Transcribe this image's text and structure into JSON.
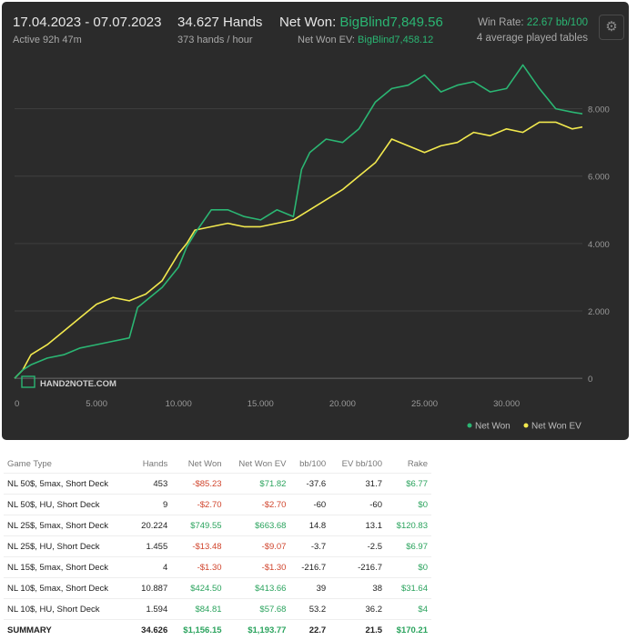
{
  "header": {
    "date_range": "17.04.2023 - 07.07.2023",
    "active": "Active 92h 47m",
    "hands": "34.627 Hands",
    "hands_per_hour": "373 hands / hour",
    "net_won_label": "Net Won:",
    "net_won_value": "BigBlind7,849.56",
    "net_won_ev_label": "Net Won  EV:",
    "net_won_ev_value": "BigBlind7,458.12",
    "win_rate_label": "Win Rate:",
    "win_rate_value": "22.67 bb/100",
    "tables": "4 average played tables",
    "gear_icon": "gear-icon"
  },
  "watermark": "HAND2NOTE.COM",
  "chart_data": {
    "type": "line",
    "xlabel": "",
    "ylabel": "",
    "xlim": [
      0,
      34627
    ],
    "ylim": [
      -400,
      9500
    ],
    "x_ticks": [
      "0",
      "5.000",
      "10.000",
      "15.000",
      "20.000",
      "25.000",
      "30.000"
    ],
    "x_tick_values": [
      0,
      5000,
      10000,
      15000,
      20000,
      25000,
      30000
    ],
    "y_ticks": [
      "0",
      "2.000",
      "4.000",
      "6.000",
      "8.000"
    ],
    "y_tick_values": [
      0,
      2000,
      4000,
      6000,
      8000
    ],
    "legend_position": "bottom-right",
    "grid": true,
    "series": [
      {
        "name": "Net Won",
        "color": "#2bb673",
        "x": [
          0,
          500,
          1000,
          2000,
          3000,
          4000,
          5000,
          6000,
          7000,
          7500,
          8000,
          9000,
          10000,
          10500,
          11000,
          12000,
          13000,
          14000,
          15000,
          16000,
          17000,
          17500,
          18000,
          18500,
          19000,
          20000,
          21000,
          22000,
          23000,
          24000,
          25000,
          26000,
          27000,
          28000,
          29000,
          30000,
          31000,
          32000,
          33000,
          34000,
          34627
        ],
        "y": [
          0,
          250,
          400,
          600,
          700,
          900,
          1000,
          1100,
          1200,
          2100,
          2300,
          2700,
          3300,
          3900,
          4300,
          5000,
          5000,
          4800,
          4700,
          5000,
          4800,
          6200,
          6700,
          6900,
          7100,
          7000,
          7400,
          8200,
          8600,
          8700,
          9000,
          8500,
          8700,
          8800,
          8500,
          8600,
          9300,
          8600,
          8000,
          7900,
          7849
        ]
      },
      {
        "name": "Net Won  EV",
        "color": "#f2e94e",
        "x": [
          0,
          500,
          1000,
          2000,
          3000,
          4000,
          5000,
          6000,
          7000,
          8000,
          9000,
          10000,
          10500,
          11000,
          12000,
          13000,
          14000,
          15000,
          16000,
          17000,
          18000,
          19000,
          20000,
          21000,
          22000,
          23000,
          24000,
          25000,
          26000,
          27000,
          28000,
          29000,
          30000,
          31000,
          32000,
          33000,
          34000,
          34627
        ],
        "y": [
          0,
          250,
          700,
          1000,
          1400,
          1800,
          2200,
          2400,
          2300,
          2500,
          2900,
          3700,
          4000,
          4400,
          4500,
          4600,
          4500,
          4500,
          4600,
          4700,
          5000,
          5300,
          5600,
          6000,
          6400,
          7100,
          6900,
          6700,
          6900,
          7000,
          7300,
          7200,
          7400,
          7300,
          7600,
          7600,
          7400,
          7458
        ]
      }
    ]
  },
  "table": {
    "headers": [
      "Game Type",
      "Hands",
      "Net Won",
      "Net Won  EV",
      "bb/100",
      "EV bb/100",
      "Rake"
    ],
    "rows": [
      {
        "game": "NL 50$, 5max, Short Deck",
        "hands": "453",
        "net_won": "-$85.23",
        "net_won_ev": "$71.82",
        "bb100": "-37.6",
        "ev_bb100": "31.7",
        "rake": "$6.77"
      },
      {
        "game": "NL 50$, HU, Short Deck",
        "hands": "9",
        "net_won": "-$2.70",
        "net_won_ev": "-$2.70",
        "bb100": "-60",
        "ev_bb100": "-60",
        "rake": "$0"
      },
      {
        "game": "NL 25$, 5max, Short Deck",
        "hands": "20.224",
        "net_won": "$749.55",
        "net_won_ev": "$663.68",
        "bb100": "14.8",
        "ev_bb100": "13.1",
        "rake": "$120.83"
      },
      {
        "game": "NL 25$, HU, Short Deck",
        "hands": "1.455",
        "net_won": "-$13.48",
        "net_won_ev": "-$9.07",
        "bb100": "-3.7",
        "ev_bb100": "-2.5",
        "rake": "$6.97"
      },
      {
        "game": "NL 15$, 5max, Short Deck",
        "hands": "4",
        "net_won": "-$1.30",
        "net_won_ev": "-$1.30",
        "bb100": "-216.7",
        "ev_bb100": "-216.7",
        "rake": "$0"
      },
      {
        "game": "NL 10$, 5max, Short Deck",
        "hands": "10.887",
        "net_won": "$424.50",
        "net_won_ev": "$413.66",
        "bb100": "39",
        "ev_bb100": "38",
        "rake": "$31.64"
      },
      {
        "game": "NL 10$, HU, Short Deck",
        "hands": "1.594",
        "net_won": "$84.81",
        "net_won_ev": "$57.68",
        "bb100": "53.2",
        "ev_bb100": "36.2",
        "rake": "$4"
      }
    ],
    "summary": {
      "game": "SUMMARY",
      "hands": "34.626",
      "net_won": "$1,156.15",
      "net_won_ev": "$1,193.77",
      "bb100": "22.7",
      "ev_bb100": "21.5",
      "rake": "$170.21"
    }
  },
  "colors": {
    "panel_bg": "#2b2b2b",
    "green": "#2bb673",
    "yellow": "#f2e94e",
    "negative": "#d0452d",
    "positive": "#2aa35d"
  }
}
